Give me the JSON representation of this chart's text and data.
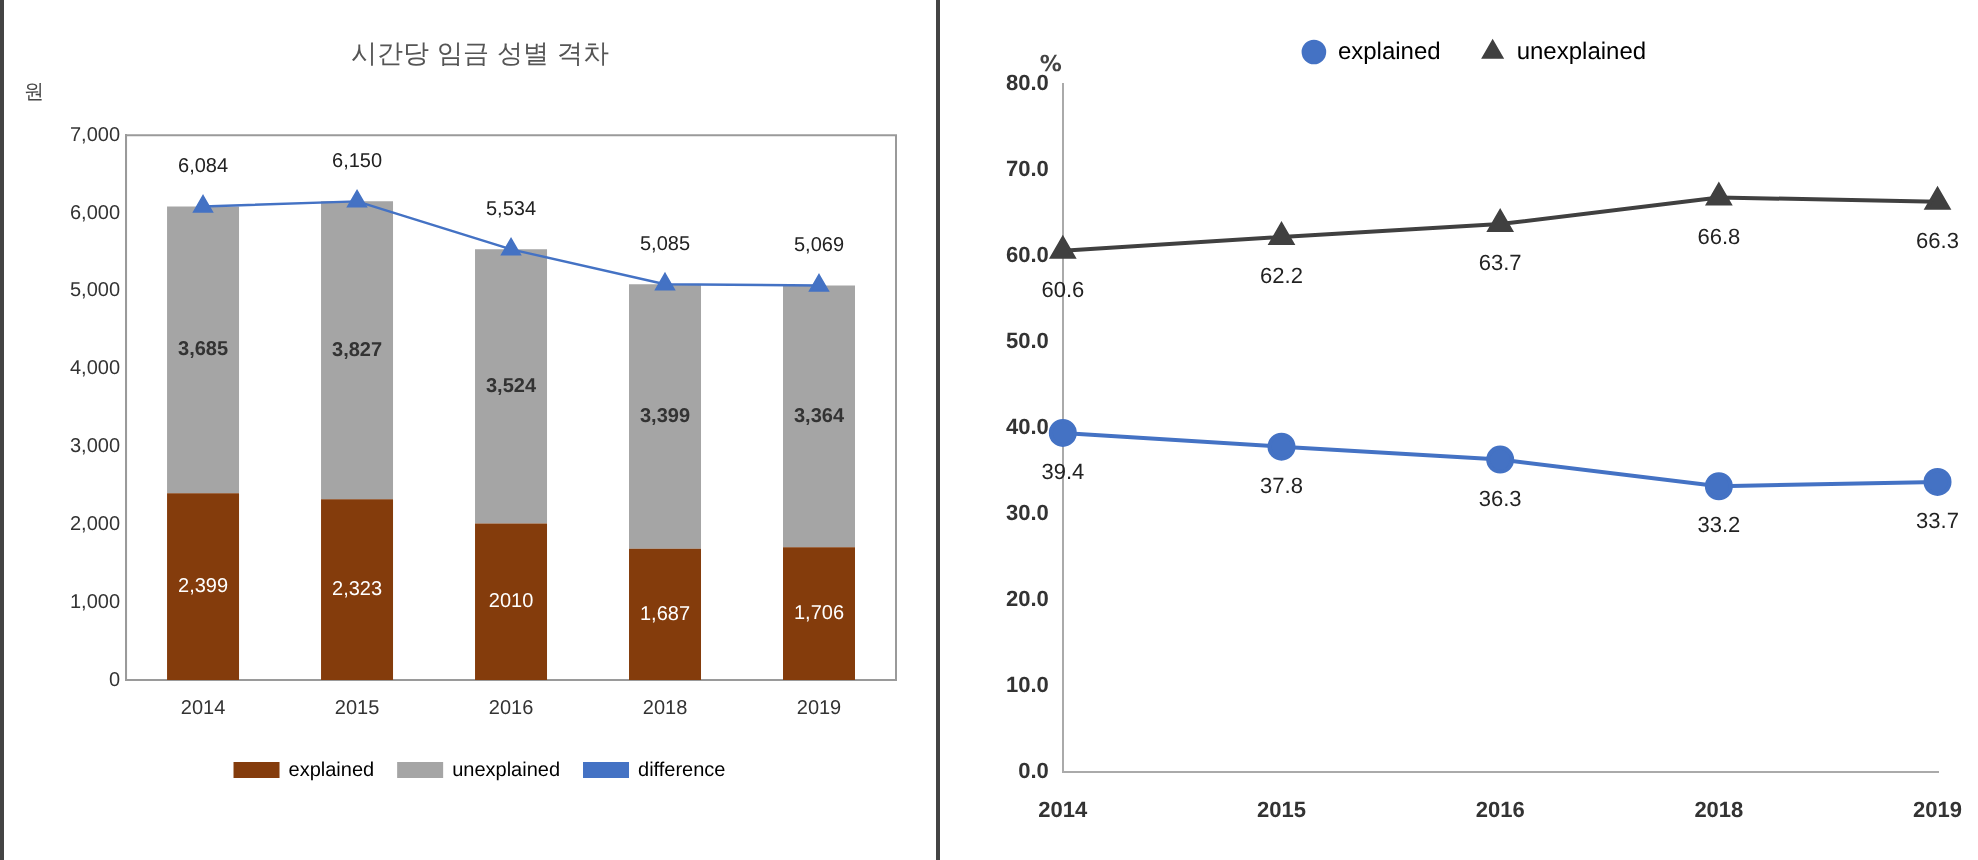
{
  "chart_data": [
    {
      "type": "bar",
      "title": "시간당 임금 성별 격차",
      "ylabel": "원",
      "categories": [
        "2014",
        "2015",
        "2016",
        "2018",
        "2019"
      ],
      "stacked": true,
      "ylim": [
        0,
        7000
      ],
      "yticks": [
        0,
        {
          "value": 1000,
          "label": "1,000"
        },
        {
          "value": 2000,
          "label": "2,000"
        },
        {
          "value": 3000,
          "label": "3,000"
        },
        {
          "value": 4000,
          "label": "4,000"
        },
        {
          "value": 5000,
          "label": "5,000"
        },
        {
          "value": 6000,
          "label": "6,000"
        },
        {
          "value": 7000,
          "label": "7,000"
        }
      ],
      "grid": false,
      "legend": "bottom",
      "series": [
        {
          "name": "explained",
          "color": "#843c0c",
          "values": [
            2399,
            2323,
            2010,
            1687,
            1706
          ],
          "value_labels": [
            "2,399",
            "2,323",
            "2010",
            "1,687",
            "1,706"
          ]
        },
        {
          "name": "unexplained",
          "color": "#a5a5a5",
          "values": [
            3685,
            3827,
            3524,
            3399,
            3364
          ],
          "value_labels": [
            "3,685",
            "3,827",
            "3,524",
            "3,399",
            "3,364"
          ]
        },
        {
          "name": "difference",
          "type": "line",
          "marker": "triangle",
          "color": "#4472c4",
          "values": [
            6084,
            6150,
            5534,
            5085,
            5069
          ],
          "value_labels": [
            "6,084",
            "6,150",
            "5,534",
            "5,085",
            "5,069"
          ]
        }
      ]
    },
    {
      "type": "line",
      "ylabel": "%",
      "categories": [
        "2014",
        "2015",
        "2016",
        "2018",
        "2019"
      ],
      "ylim": [
        0,
        80
      ],
      "yticks": [
        {
          "value": 0,
          "label": "0.0"
        },
        {
          "value": 10,
          "label": "10.0"
        },
        {
          "value": 20,
          "label": "20.0"
        },
        {
          "value": 30,
          "label": "30.0"
        },
        {
          "value": 40,
          "label": "40.0"
        },
        {
          "value": 50,
          "label": "50.0"
        },
        {
          "value": 60,
          "label": "60.0"
        },
        {
          "value": 70,
          "label": "70.0"
        },
        {
          "value": 80,
          "label": "80.0"
        }
      ],
      "grid": false,
      "legend": "top",
      "data_labels": true,
      "series": [
        {
          "name": "explained",
          "marker": "circle",
          "color": "#4472c4",
          "values": [
            39.4,
            37.8,
            36.3,
            33.2,
            33.7
          ]
        },
        {
          "name": "unexplained",
          "marker": "triangle",
          "color": "#404040",
          "values": [
            60.6,
            62.2,
            63.7,
            66.8,
            66.3
          ]
        }
      ]
    }
  ]
}
